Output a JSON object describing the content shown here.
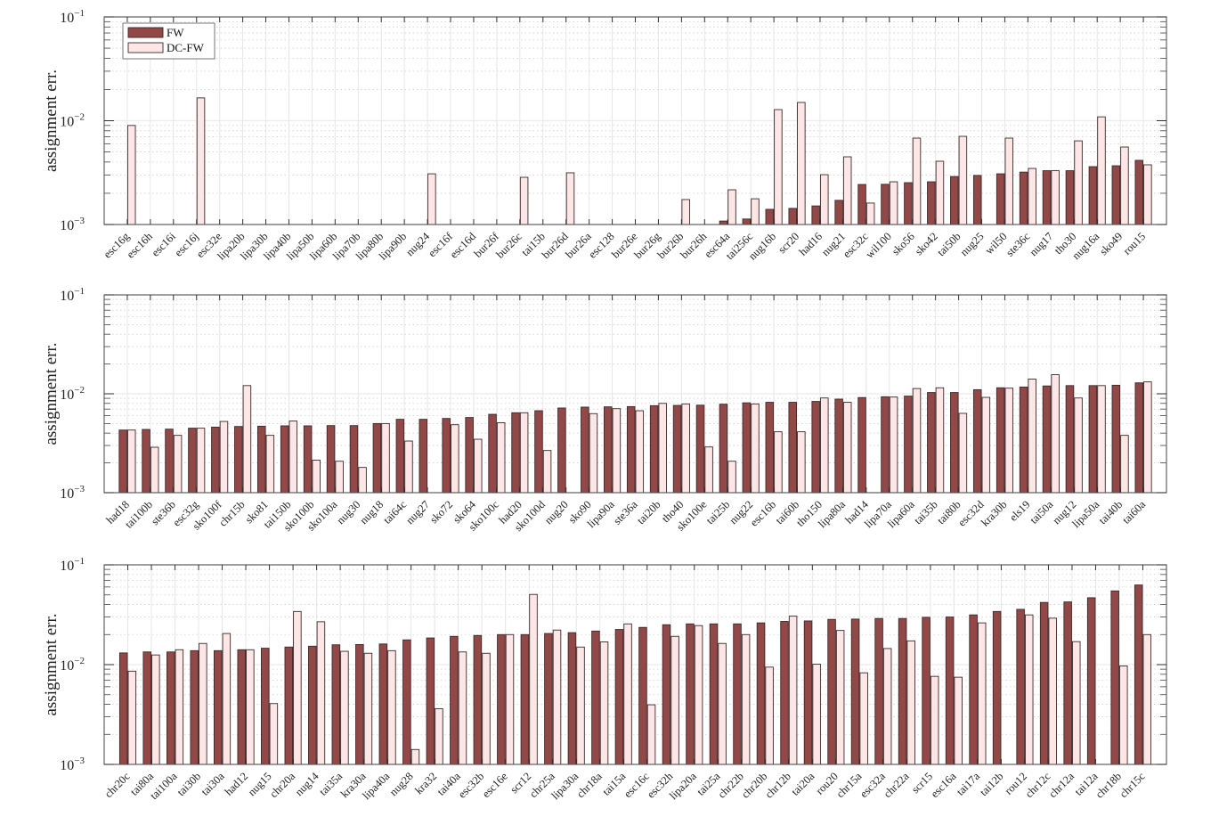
{
  "legend": {
    "entries": [
      "FW",
      "DC-FW"
    ],
    "placement": "top-left"
  },
  "colors": {
    "FW": "#934848",
    "DC-FW": "#fde6e6",
    "edge": "#3a2a2a"
  },
  "chart_data": [
    {
      "type": "bar",
      "yscale": "log",
      "ylim": [
        0.001,
        0.1
      ],
      "ylabel": "assignment err.",
      "yticks": [
        0.1,
        0.01,
        0.001
      ],
      "ytick_labels": [
        [
          "10",
          "−1"
        ],
        [
          "10",
          "−2"
        ],
        [
          "10",
          "−3"
        ]
      ],
      "grid": true,
      "categories": [
        "esc16g",
        "esc16h",
        "esc16i",
        "esc16j",
        "esc32e",
        "lipa20b",
        "lipa30b",
        "lipa40b",
        "lipa50b",
        "lipa60b",
        "lipa70b",
        "lipa80b",
        "lipa90b",
        "nug24",
        "esc16f",
        "esc16d",
        "bur26f",
        "bur26c",
        "tai15b",
        "bur26d",
        "bur26a",
        "esc128",
        "bur26e",
        "bur26g",
        "bur26b",
        "bur26h",
        "esc64a",
        "tai256c",
        "nug16b",
        "scr20",
        "had16",
        "nug21",
        "esc32c",
        "wil100",
        "sko56",
        "sko42",
        "tai50b",
        "nug25",
        "wil50",
        "ste36c",
        "nug17",
        "tho30",
        "nug16a",
        "sko49",
        "rou15"
      ],
      "series": [
        {
          "name": "FW",
          "values": [
            null,
            null,
            null,
            null,
            null,
            null,
            null,
            null,
            null,
            null,
            null,
            null,
            null,
            null,
            null,
            null,
            null,
            null,
            null,
            null,
            null,
            null,
            null,
            null,
            null,
            null,
            0.00108,
            0.00113,
            0.0014,
            0.00143,
            0.00151,
            0.00171,
            0.00243,
            0.00244,
            0.00253,
            0.00258,
            0.0029,
            0.00297,
            0.00308,
            0.0032,
            0.0033,
            0.0033,
            0.00361,
            0.00368,
            0.00415
          ]
        },
        {
          "name": "DC-FW",
          "values": [
            0.009,
            null,
            null,
            0.0166,
            null,
            null,
            null,
            null,
            null,
            null,
            null,
            null,
            null,
            0.00308,
            null,
            null,
            null,
            0.00285,
            null,
            0.00315,
            null,
            null,
            null,
            null,
            0.00174,
            null,
            0.00216,
            0.00177,
            0.0128,
            0.015,
            0.00302,
            0.00449,
            0.00161,
            0.00258,
            0.0068,
            0.00407,
            0.00707,
            null,
            0.0068,
            0.00347,
            0.0033,
            0.0064,
            0.0109,
            0.00558,
            0.00376
          ]
        }
      ]
    },
    {
      "type": "bar",
      "yscale": "log",
      "ylim": [
        0.001,
        0.1
      ],
      "ylabel": "assignment err.",
      "yticks": [
        0.1,
        0.01,
        0.001
      ],
      "ytick_labels": [
        [
          "10",
          "−1"
        ],
        [
          "10",
          "−2"
        ],
        [
          "10",
          "−3"
        ]
      ],
      "grid": true,
      "categories": [
        "had18",
        "tai100b",
        "ste36b",
        "esc32g",
        "sko100f",
        "chr15b",
        "sko81",
        "tai150b",
        "sko100b",
        "sko100a",
        "nug30",
        "nug18",
        "tai64c",
        "nug27",
        "sko72",
        "sko64",
        "sko100c",
        "had20",
        "sko100d",
        "nug20",
        "sko90",
        "lipa90a",
        "ste36a",
        "tai20b",
        "tho40",
        "sko100e",
        "tai25b",
        "nug22",
        "esc16b",
        "tai60b",
        "tho150",
        "lipa80a",
        "had14",
        "lipa70a",
        "lipa60a",
        "tai35b",
        "tai80b",
        "esc32d",
        "kra30b",
        "els19",
        "tai50a",
        "nug12",
        "lipa50a",
        "tai40b",
        "tai60a"
      ],
      "series": [
        {
          "name": "FW",
          "values": [
            0.0043,
            0.00436,
            0.00439,
            0.00449,
            0.0046,
            0.00467,
            0.0047,
            0.00474,
            0.00474,
            0.00477,
            0.00477,
            0.005,
            0.00552,
            0.00552,
            0.00563,
            0.00576,
            0.0062,
            0.00643,
            0.00674,
            0.00718,
            0.00733,
            0.00738,
            0.00742,
            0.00758,
            0.00763,
            0.00767,
            0.00785,
            0.0081,
            0.0082,
            0.0082,
            0.00837,
            0.00883,
            0.00916,
            0.00933,
            0.00947,
            0.0103,
            0.0103,
            0.011,
            0.0115,
            0.0117,
            0.012,
            0.0121,
            0.0121,
            0.0122,
            0.0129
          ]
        },
        {
          "name": "DC-FW",
          "values": [
            0.0043,
            0.00288,
            0.0038,
            0.00449,
            0.00525,
            0.0121,
            0.0038,
            0.0053,
            0.00213,
            0.00208,
            0.0018,
            0.005,
            0.00333,
            null,
            0.00487,
            0.00347,
            0.0051,
            0.00643,
            0.00267,
            null,
            0.0063,
            0.00707,
            0.00674,
            0.008,
            0.0079,
            0.0029,
            0.00208,
            0.0079,
            0.00413,
            0.00413,
            0.00907,
            0.0082,
            null,
            0.00927,
            0.0113,
            0.0115,
            0.00634,
            0.0092,
            0.0114,
            0.0141,
            0.0156,
            0.00907,
            0.0121,
            0.0038,
            0.0132
          ]
        }
      ]
    },
    {
      "type": "bar",
      "yscale": "log",
      "ylim": [
        0.001,
        0.1
      ],
      "ylabel": "assignment err.",
      "yticks": [
        0.1,
        0.01,
        0.001
      ],
      "ytick_labels": [
        [
          "10",
          "−1"
        ],
        [
          "10",
          "−2"
        ],
        [
          "10",
          "−3"
        ]
      ],
      "grid": true,
      "categories": [
        "chr20c",
        "tai80a",
        "tai100a",
        "tai30b",
        "tai30a",
        "had12",
        "nug15",
        "chr20a",
        "nug14",
        "tai35a",
        "kra30a",
        "lipa40a",
        "nug28",
        "kra32",
        "tai40a",
        "esc32b",
        "esc16e",
        "scr12",
        "chr25a",
        "lipa30a",
        "chr18a",
        "tai15a",
        "esc16c",
        "esc32h",
        "lipa20a",
        "tai25a",
        "chr22b",
        "chr20b",
        "chr12b",
        "tai20a",
        "rou20",
        "chr15a",
        "esc32a",
        "chr22a",
        "scr15",
        "esc16a",
        "tai17a",
        "tai12b",
        "rou12",
        "chr12c",
        "chr12a",
        "tai12a",
        "chr18b",
        "chr15c"
      ],
      "series": [
        {
          "name": "FW",
          "values": [
            0.0131,
            0.0134,
            0.0134,
            0.0138,
            0.0138,
            0.0141,
            0.0146,
            0.015,
            0.0153,
            0.0158,
            0.0159,
            0.0161,
            0.0177,
            0.0185,
            0.0192,
            0.0196,
            0.02,
            0.02,
            0.0205,
            0.0209,
            0.0217,
            0.0225,
            0.0236,
            0.0251,
            0.0256,
            0.0256,
            0.0256,
            0.0262,
            0.0271,
            0.0274,
            0.0284,
            0.0286,
            0.029,
            0.029,
            0.0298,
            0.03,
            0.0315,
            0.0341,
            0.0358,
            0.042,
            0.0425,
            0.0468,
            0.0548,
            0.0628
          ]
        },
        {
          "name": "DC-FW",
          "values": [
            0.0086,
            0.0125,
            0.0141,
            0.0163,
            0.0205,
            0.0141,
            0.00407,
            0.0341,
            0.0269,
            0.0136,
            0.013,
            0.0138,
            0.00141,
            0.00362,
            0.0134,
            0.013,
            0.02,
            0.0505,
            0.0222,
            0.015,
            0.0169,
            0.0256,
            0.00396,
            0.0192,
            0.0246,
            0.0163,
            0.02,
            0.00944,
            0.0306,
            0.0101,
            0.022,
            0.00828,
            0.0145,
            0.0173,
            0.00763,
            0.00748,
            0.0262,
            null,
            0.0315,
            0.0292,
            0.017,
            null,
            0.0097,
            0.02
          ]
        }
      ]
    }
  ]
}
